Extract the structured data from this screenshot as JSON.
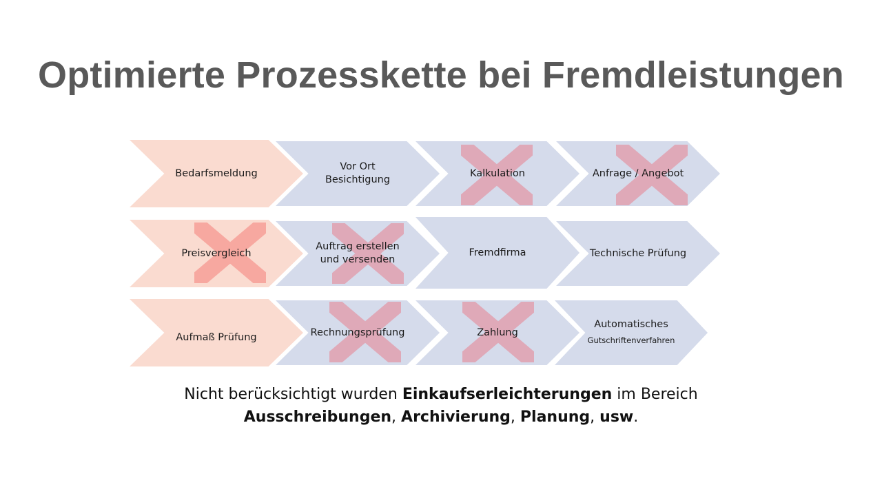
{
  "title": "Optimierte Prozesskette bei Fremdleistungen",
  "steps": [
    {
      "label": "Bedarfsmeldung",
      "removed": false
    },
    {
      "label": "Vor Ort\nBesichtigung",
      "removed": false
    },
    {
      "label": "Kalkulation",
      "removed": true
    },
    {
      "label": "Anfrage / Angebot",
      "removed": true
    },
    {
      "label": "Preisvergleich",
      "removed": true
    },
    {
      "label": "Auftrag erstellen\nund versenden",
      "removed": true
    },
    {
      "label": "Fremdfirma",
      "removed": false
    },
    {
      "label": "Technische Prüfung",
      "removed": false
    },
    {
      "label": "Aufmaß   Prüfung",
      "removed": false
    },
    {
      "label": "Rechnungsprüfung",
      "removed": true
    },
    {
      "label": "Zahlung",
      "removed": true
    },
    {
      "label": "Automatisches",
      "sublabel": "Gutschriftenverfahren",
      "removed": false
    }
  ],
  "footnote": {
    "t1": "Nicht berücksichtigt wurden ",
    "b1": "Einkaufserleichterungen",
    "t2": " im Bereich",
    "b2": "Ausschreibungen",
    "t3": ", ",
    "b3": "Archivierung",
    "t4": ", ",
    "b4": "Planung",
    "t5": ", ",
    "b5": "usw",
    "t6": "."
  },
  "colors": {
    "orange_chevron": "#fadbd0",
    "blue_chevron": "#d5dbeb",
    "cross_on_blue": "#dfa9b8",
    "cross_on_orange": "#f7a8a0",
    "title": "#595959"
  }
}
